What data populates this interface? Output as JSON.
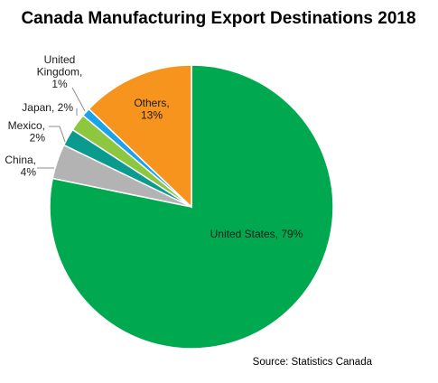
{
  "chart_data": {
    "type": "pie",
    "title": "Canada Manufacturing Export Destinations 2018",
    "source": "Source: Statistics Canada",
    "start_angle_deg": 0,
    "direction": "clockwise",
    "slices": [
      {
        "name": "United States",
        "value": 79,
        "color": "#00a94f",
        "label_lines": [
          "United States, 79%"
        ]
      },
      {
        "name": "China",
        "value": 4,
        "color": "#b3b3b3",
        "label_lines": [
          "China,",
          "4%"
        ]
      },
      {
        "name": "Mexico",
        "value": 2,
        "color": "#0b9b8e",
        "label_lines": [
          "Mexico,",
          "2%"
        ]
      },
      {
        "name": "Japan",
        "value": 2,
        "color": "#8dc63f",
        "label_lines": [
          "Japan, 2%"
        ]
      },
      {
        "name": "United Kingdom",
        "value": 1,
        "color": "#1aa3e8",
        "label_lines": [
          "United",
          "Kingdom,",
          "1%"
        ]
      },
      {
        "name": "Others",
        "value": 13,
        "color": "#f7941d",
        "label_lines": [
          "Others,",
          "13%"
        ]
      }
    ]
  }
}
